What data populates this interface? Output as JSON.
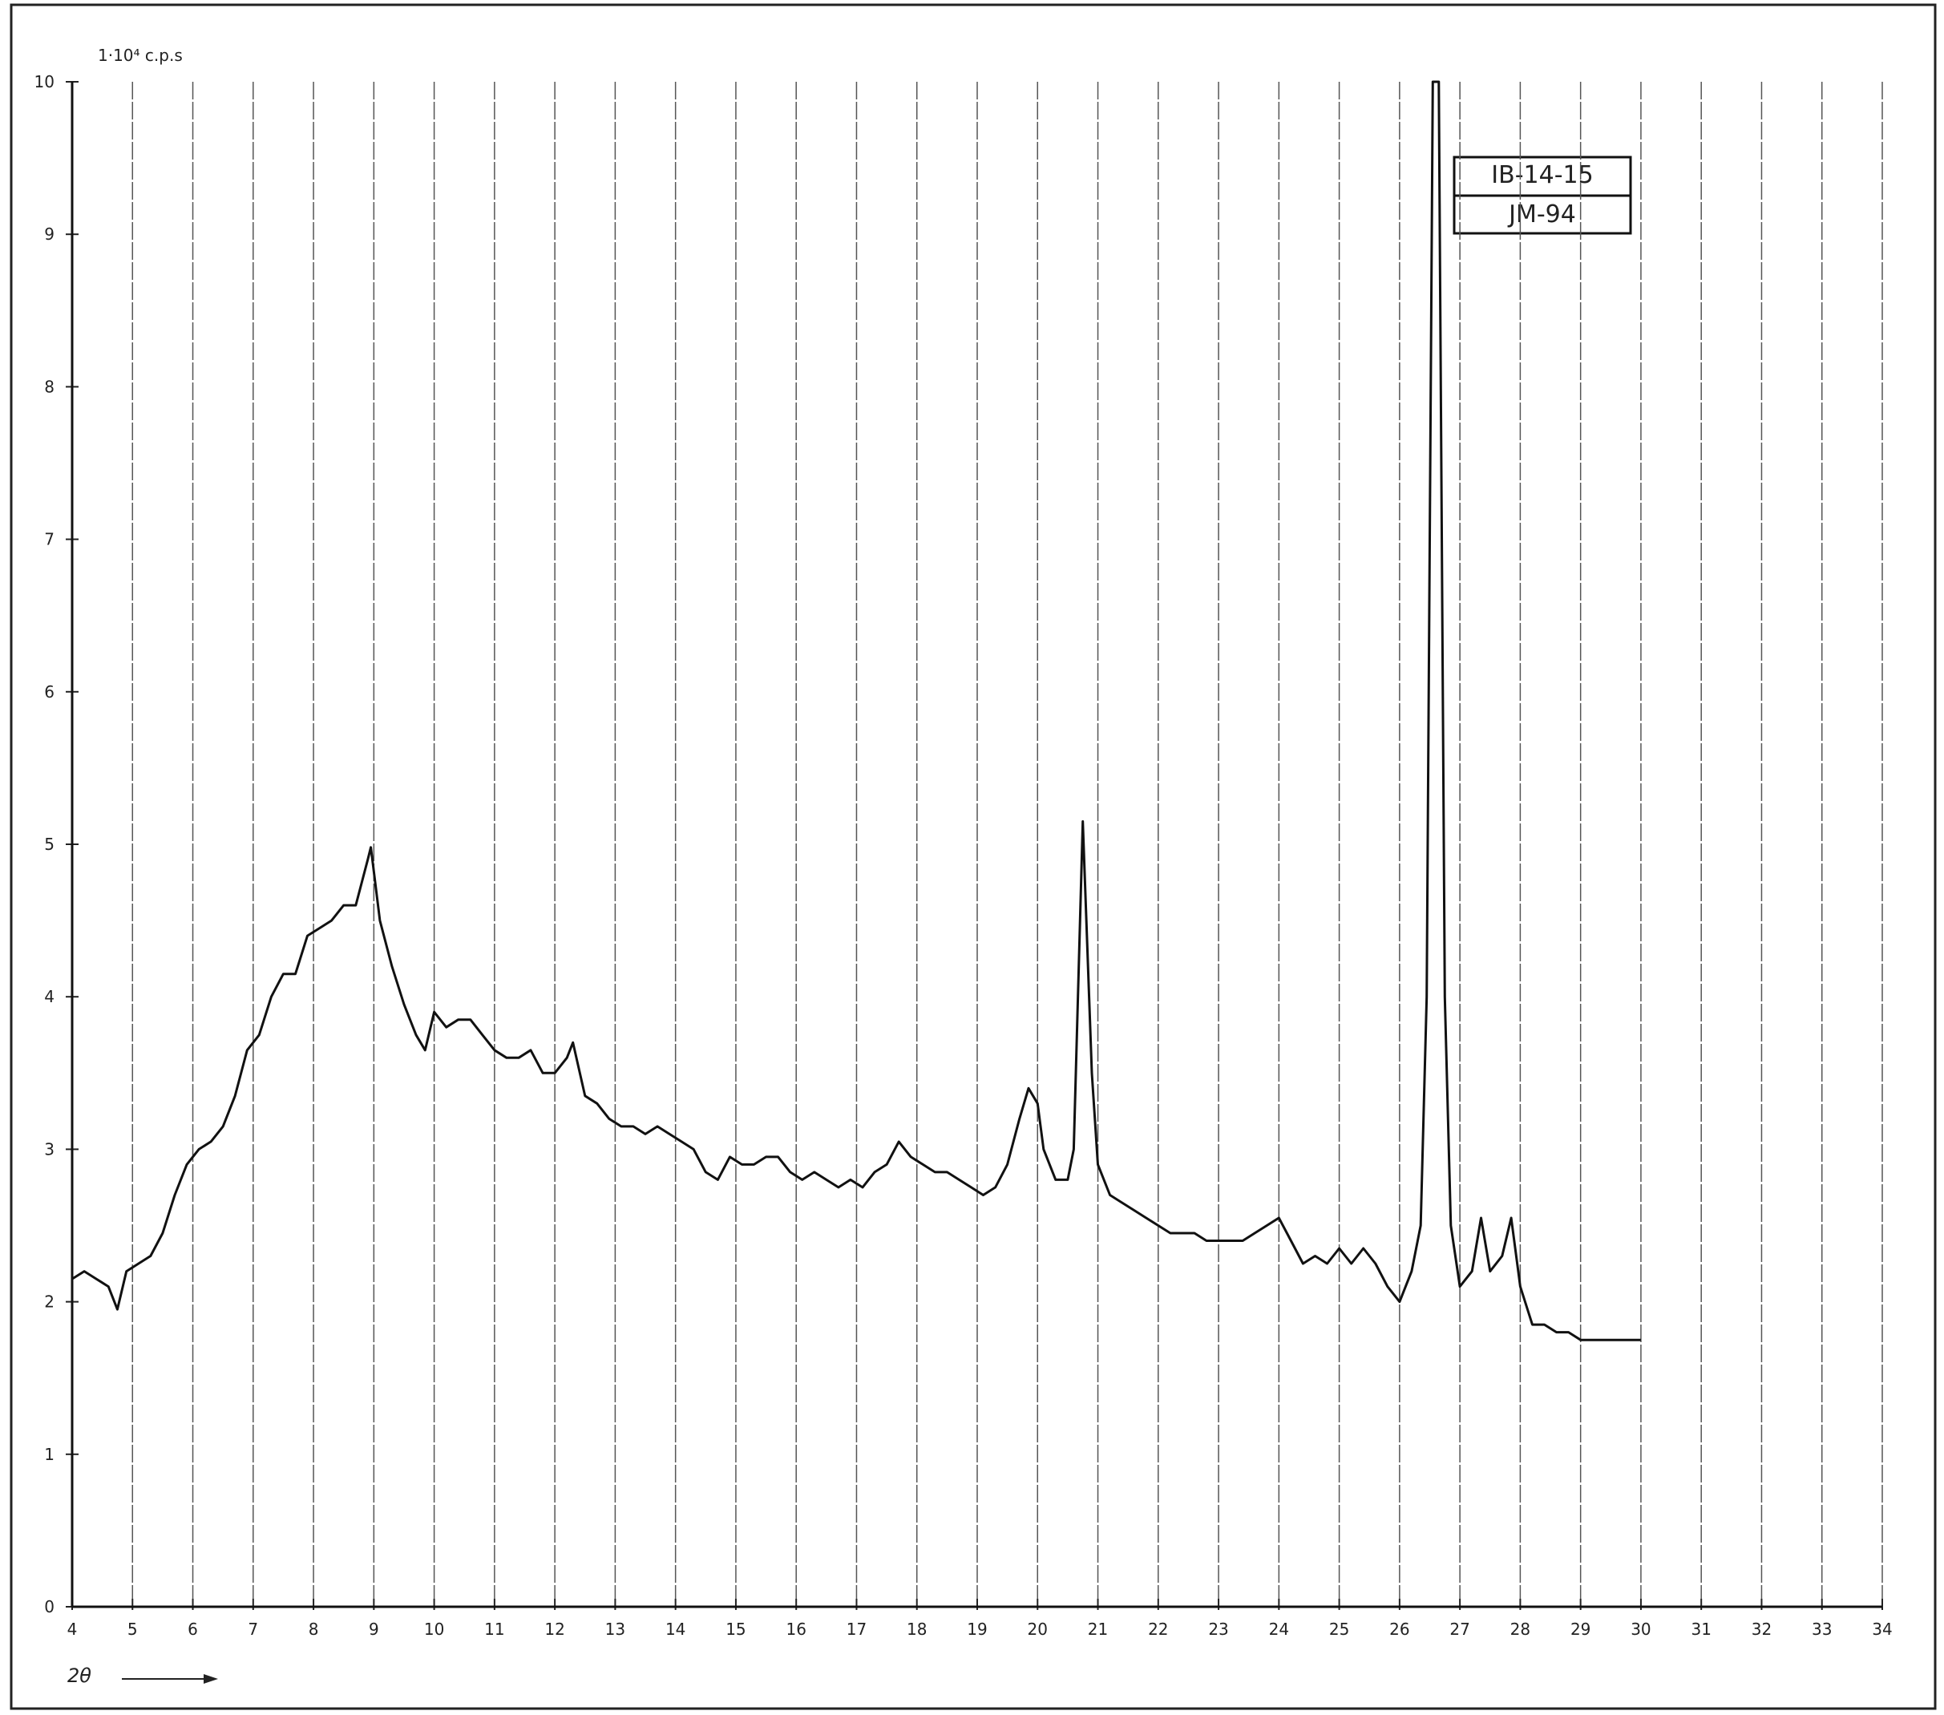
{
  "chart_data": {
    "type": "line",
    "y_axis_label": "1·10⁴ c.p.s",
    "x_axis_label": "2θ",
    "annotations": [
      "IB-14-15",
      "JM-94"
    ],
    "xlim": [
      4,
      34
    ],
    "ylim": [
      0,
      10
    ],
    "xticks": [
      4,
      5,
      6,
      7,
      8,
      9,
      10,
      11,
      12,
      13,
      14,
      15,
      16,
      17,
      18,
      19,
      20,
      21,
      22,
      23,
      24,
      25,
      26,
      27,
      28,
      29,
      30,
      31,
      32,
      33,
      34
    ],
    "yticks": [
      0,
      1,
      2,
      3,
      4,
      5,
      6,
      7,
      8,
      9,
      10
    ],
    "grid": true,
    "series": [
      {
        "color": "#111111",
        "x": [
          4.0,
          4.2,
          4.4,
          4.6,
          4.75,
          4.9,
          5.1,
          5.3,
          5.5,
          5.7,
          5.9,
          6.1,
          6.3,
          6.5,
          6.7,
          6.9,
          7.1,
          7.3,
          7.5,
          7.7,
          7.9,
          8.1,
          8.3,
          8.5,
          8.7,
          8.9,
          8.95,
          9.1,
          9.3,
          9.5,
          9.7,
          9.85,
          10.0,
          10.2,
          10.4,
          10.6,
          10.8,
          11.0,
          11.2,
          11.4,
          11.6,
          11.8,
          12.0,
          12.2,
          12.3,
          12.5,
          12.7,
          12.9,
          13.1,
          13.3,
          13.5,
          13.7,
          13.9,
          14.1,
          14.3,
          14.5,
          14.7,
          14.9,
          15.1,
          15.3,
          15.5,
          15.7,
          15.9,
          16.1,
          16.3,
          16.5,
          16.7,
          16.9,
          17.1,
          17.3,
          17.5,
          17.7,
          17.9,
          18.1,
          18.3,
          18.5,
          18.7,
          18.9,
          19.1,
          19.3,
          19.5,
          19.7,
          19.85,
          20.0,
          20.1,
          20.3,
          20.5,
          20.6,
          20.75,
          20.9,
          21.0,
          21.2,
          21.4,
          21.6,
          21.8,
          22.0,
          22.2,
          22.4,
          22.6,
          22.8,
          23.0,
          23.2,
          23.4,
          23.6,
          23.8,
          24.0,
          24.2,
          24.4,
          24.6,
          24.8,
          25.0,
          25.2,
          25.4,
          25.6,
          25.8,
          26.0,
          26.2,
          26.35,
          26.45,
          26.55,
          26.65,
          26.75,
          26.85,
          27.0,
          27.2,
          27.35,
          27.5,
          27.7,
          27.85,
          28.0,
          28.2,
          28.4,
          28.6,
          28.8,
          29.0,
          29.2,
          30.0
        ],
        "values": [
          2.15,
          2.2,
          2.15,
          2.1,
          1.95,
          2.2,
          2.25,
          2.3,
          2.45,
          2.7,
          2.9,
          3.0,
          3.05,
          3.15,
          3.35,
          3.65,
          3.75,
          4.0,
          4.15,
          4.15,
          4.4,
          4.45,
          4.5,
          4.6,
          4.6,
          4.9,
          4.98,
          4.5,
          4.2,
          3.95,
          3.75,
          3.65,
          3.9,
          3.8,
          3.85,
          3.85,
          3.75,
          3.65,
          3.6,
          3.6,
          3.65,
          3.5,
          3.5,
          3.6,
          3.7,
          3.35,
          3.3,
          3.2,
          3.15,
          3.15,
          3.1,
          3.15,
          3.1,
          3.05,
          3.0,
          2.85,
          2.8,
          2.95,
          2.9,
          2.9,
          2.95,
          2.95,
          2.85,
          2.8,
          2.85,
          2.8,
          2.75,
          2.8,
          2.75,
          2.85,
          2.9,
          3.05,
          2.95,
          2.9,
          2.85,
          2.85,
          2.8,
          2.75,
          2.7,
          2.75,
          2.9,
          3.2,
          3.4,
          3.3,
          3.0,
          2.8,
          2.8,
          3.0,
          5.15,
          3.5,
          2.9,
          2.7,
          2.65,
          2.6,
          2.55,
          2.5,
          2.45,
          2.45,
          2.45,
          2.4,
          2.4,
          2.4,
          2.4,
          2.45,
          2.5,
          2.55,
          2.4,
          2.25,
          2.3,
          2.25,
          2.35,
          2.25,
          2.35,
          2.25,
          2.1,
          2.0,
          2.2,
          2.5,
          4.0,
          10.0,
          10.0,
          4.0,
          2.5,
          2.1,
          2.2,
          2.55,
          2.2,
          2.3,
          2.55,
          2.1,
          1.85,
          1.85,
          1.8,
          1.8,
          1.75,
          1.75,
          1.75
        ]
      }
    ]
  }
}
